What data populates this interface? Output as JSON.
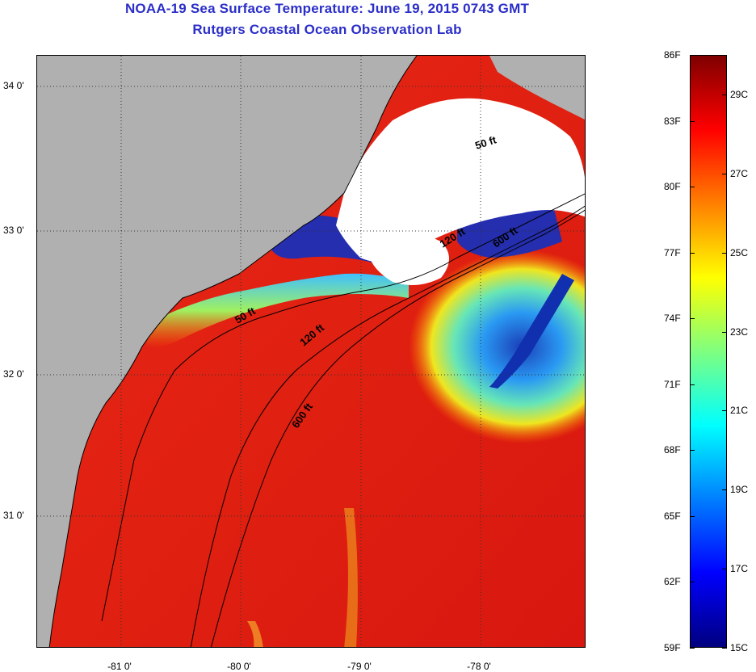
{
  "title_line1": "NOAA-19 Sea Surface Temperature:  June 19, 2015 0743 GMT",
  "title_line2": "Rutgers Coastal Ocean Observation Lab",
  "latitude_labels": [
    "34 0'",
    "33 0'",
    "32 0'",
    "31 0'"
  ],
  "longitude_labels": [
    "-81 0'",
    "-80 0'",
    "-79 0'",
    "-78 0'"
  ],
  "contour_labels": {
    "c50_a": "50 ft",
    "c50_b": "50 ft",
    "c120_a": "120 ft",
    "c120_b": "120 ft",
    "c600_a": "600 ft",
    "c600_b": "600 ft"
  },
  "colorbar": {
    "fahrenheit": [
      "86F",
      "83F",
      "80F",
      "77F",
      "74F",
      "71F",
      "68F",
      "65F",
      "62F",
      "59F"
    ],
    "celsius": [
      "29C",
      "27C",
      "25C",
      "23C",
      "21C",
      "19C",
      "17C",
      "15C"
    ],
    "min_f": 59,
    "max_f": 86,
    "colors": [
      "#00007f",
      "#0000ff",
      "#007fff",
      "#00ffff",
      "#7fff7f",
      "#ffff00",
      "#ff7f00",
      "#ff0000",
      "#7f0000"
    ]
  },
  "colors": {
    "title": "#2b2ec8",
    "land": "#b0b0b0",
    "cloud": "#ffffff",
    "ocean_warm": "#e8261a"
  }
}
